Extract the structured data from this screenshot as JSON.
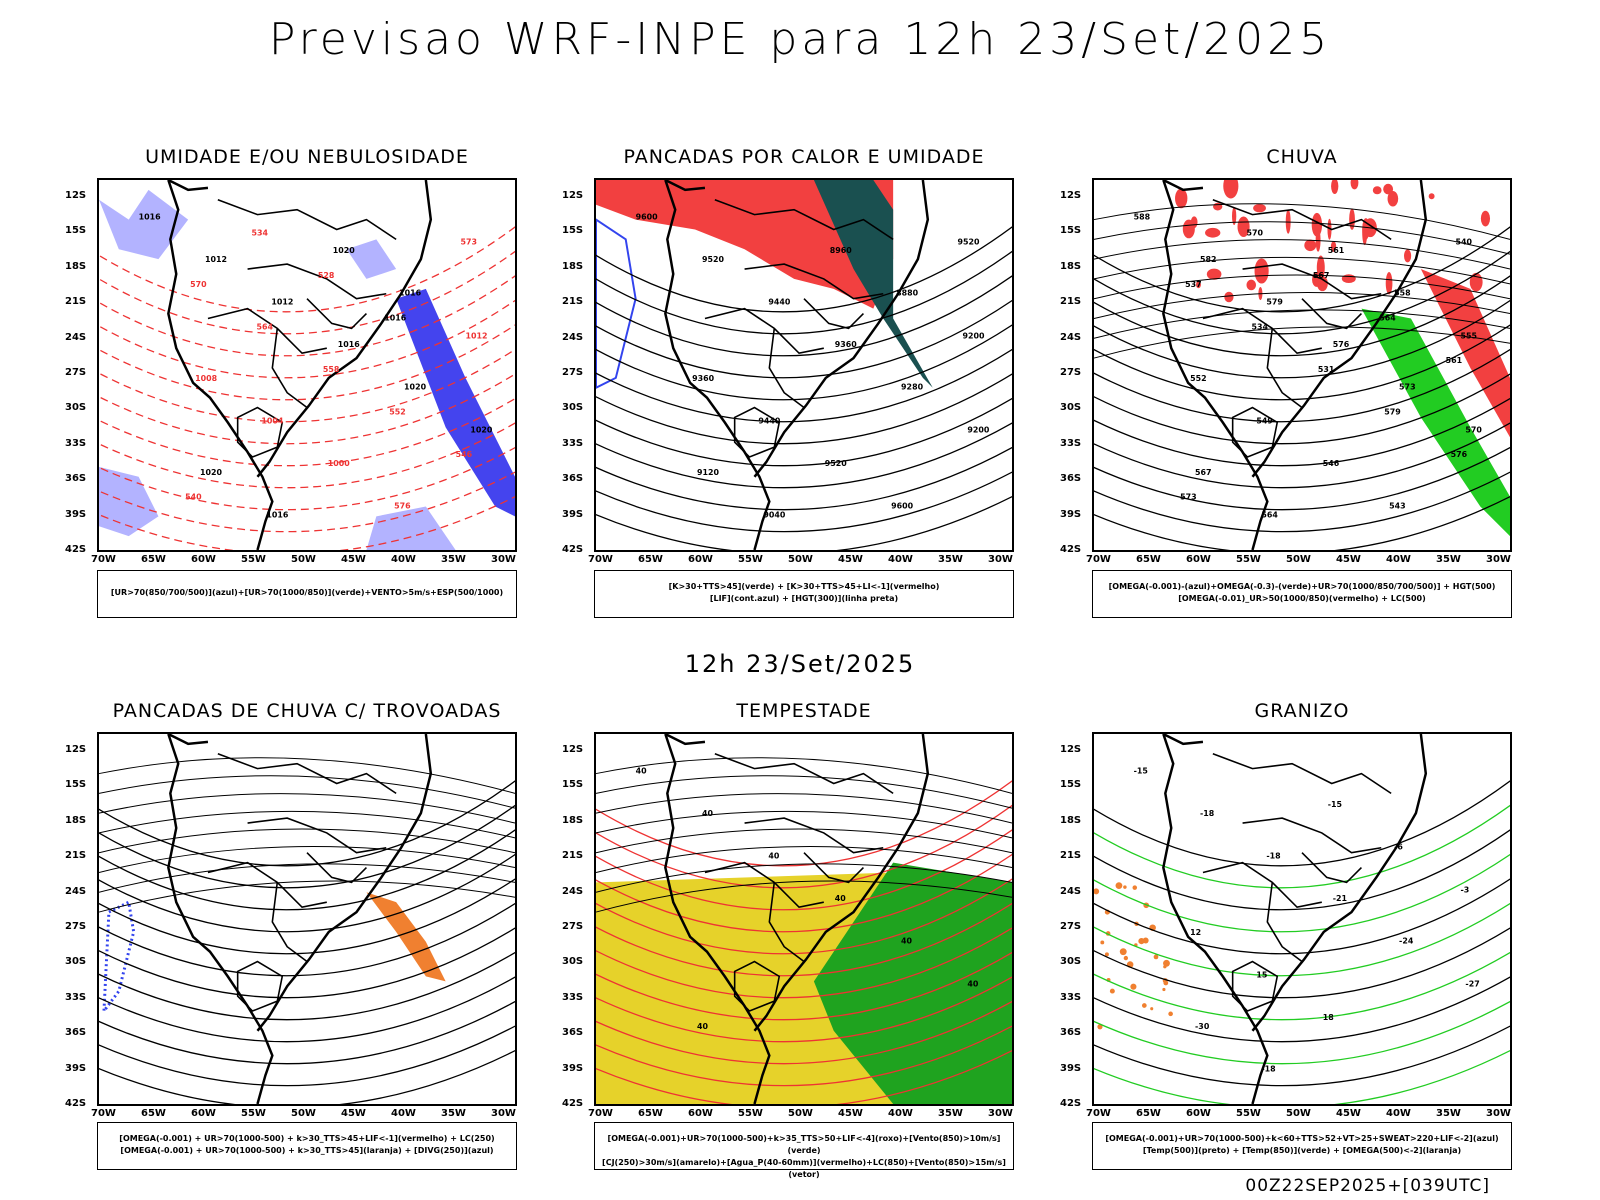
{
  "page": {
    "title": "Previsao WRF-INPE  para 12h 23/Set/2025",
    "mid_title": "12h 23/Set/2025",
    "footer": "00Z22SEP2025+[039UTC]"
  },
  "axes": {
    "lat_labels": [
      "12S",
      "15S",
      "18S",
      "21S",
      "24S",
      "27S",
      "30S",
      "33S",
      "36S",
      "39S",
      "42S"
    ],
    "lon_labels": [
      "70W",
      "65W",
      "60W",
      "55W",
      "50W",
      "45W",
      "40W",
      "35W",
      "30W"
    ]
  },
  "panels": [
    {
      "title": "UMIDADE E/OU NEBULOSIDADE",
      "legend": [
        "[UR>70(850/700/500)](azul)+[UR>70(1000/850)](verde)+VENTO>5m/s+ESP(500/1000)"
      ],
      "colors": {
        "fill1": "#b3b3ff",
        "fill2": "#4444ee",
        "line1": "#ee3333",
        "line2": "#22cc22",
        "line3": "#000000"
      },
      "labels": [
        "1016",
        "1012",
        "1012",
        "1016",
        "1020",
        "1020",
        "1020",
        "1016",
        "1020",
        "1016",
        "1012",
        "1008",
        "1004",
        "1000",
        "576",
        "573",
        "570",
        "564",
        "558",
        "552",
        "546",
        "540",
        "534",
        "528",
        "1016"
      ]
    },
    {
      "title": "PANCADAS POR CALOR E UMIDADE",
      "legend": [
        "[K>30+TTS>45](verde) + [K>30+TTS>45+LI<-1](vermelho)",
        "[LIF](cont.azul) + [HGT(300)](linha preta)"
      ],
      "colors": {
        "fill1": "#f24040",
        "fill2": "#1a5050",
        "line1": "#3344ee",
        "line2": "#3344ee",
        "line3": "#000000"
      },
      "labels": [
        "9600",
        "9520",
        "9440",
        "9360",
        "9280",
        "9200",
        "9120",
        "9040",
        "8960",
        "8880",
        "9200",
        "9360",
        "9440",
        "9520",
        "9600",
        "9520"
      ]
    },
    {
      "title": "CHUVA",
      "legend": [
        "[OMEGA(-0.001)-(azul)+OMEGA(-0.3)-(verde)+UR>70(1000/850/700/500)] + HGT(500)",
        "[OMEGA(-0.01)_UR>50(1000/850)(vermelho) + LC(500)"
      ],
      "colors": {
        "fill1": "#f24040",
        "fill2": "#22cc22",
        "line1": "#3344ee",
        "line2": "#22cc22",
        "line3": "#000000"
      },
      "labels": [
        "588",
        "582",
        "579",
        "576",
        "573",
        "570",
        "567",
        "564",
        "561",
        "558",
        "555",
        "552",
        "549",
        "546",
        "543",
        "540",
        "537",
        "534",
        "531",
        "579",
        "576",
        "573",
        "570",
        "567",
        "564",
        "561"
      ]
    },
    {
      "title": "PANCADAS DE CHUVA C/ TROVOADAS",
      "legend": [
        "[OMEGA(-0.001) + UR>70(1000-500) + k>30_TTS>45+LIF<-1](vermelho) + LC(250)",
        "[OMEGA(-0.001) + UR>70(1000-500) + k>30_TTS>45](laranja) + [DIVG(250)](azul)"
      ],
      "colors": {
        "fill1": "#f08030",
        "fill2": "#3344ee",
        "line1": "#3344ee",
        "line2": "#f08030",
        "line3": "#000000"
      },
      "labels": []
    },
    {
      "title": "TEMPESTADE",
      "legend": [
        "[OMEGA(-0.001)+UR>70(1000-500)+k>35_TTS>50+LIF<-4](roxo)+[Vento(850)>10m/s](verde)",
        "[CJ(250)>30m/s](amarelo)+[Agua_P(40-60mm)](vermelho)+LC(850)+[Vento(850)>15m/s](vetor)"
      ],
      "colors": {
        "fill1": "#e6d22a",
        "fill2": "#1fa31f",
        "line1": "#ee3333",
        "line2": "#ee3333",
        "line3": "#000000"
      },
      "labels": [
        "40",
        "40",
        "40",
        "40",
        "40",
        "40",
        "40"
      ]
    },
    {
      "title": "GRANIZO",
      "legend": [
        "[OMEGA(-0.001)+UR>70(1000-500)+k<60+TTS>52+VT>25+SWEAT>220+LIF<-2](azul)",
        "[Temp(500)](preto) + [Temp(850)](verde) + [OMEGA(500)<-2](laranja)"
      ],
      "colors": {
        "fill1": "#f08030",
        "fill2": "#22cc22",
        "line1": "#22cc22",
        "line2": "#22cc22",
        "line3": "#000000"
      },
      "labels": [
        "-15",
        "-18",
        "-18",
        "-21",
        "-24",
        "-27",
        "-30",
        "-18",
        "-15",
        "-6",
        "-3",
        "12",
        "15",
        "18"
      ]
    }
  ]
}
